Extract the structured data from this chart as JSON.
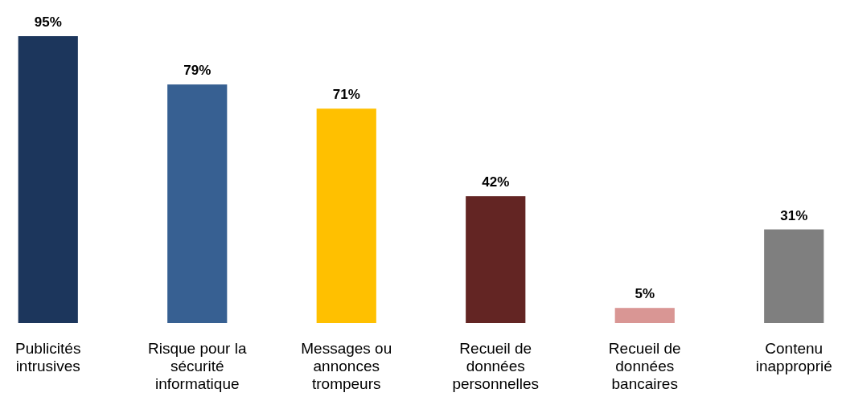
{
  "chart_data": {
    "type": "bar",
    "categories": [
      "Publicités intrusives",
      "Risque pour la sécurité informatique",
      "Messages ou annonces trompeurs",
      "Recueil de données personnelles",
      "Recueil de données bancaires",
      "Contenu inapproprié"
    ],
    "values": [
      95,
      79,
      71,
      42,
      5,
      31
    ],
    "colors": [
      "#1c365c",
      "#376092",
      "#ffc000",
      "#632523",
      "#d99694",
      "#7f7f7f"
    ],
    "value_labels": [
      "95%",
      "79%",
      "71%",
      "42%",
      "5%",
      "31%"
    ]
  }
}
